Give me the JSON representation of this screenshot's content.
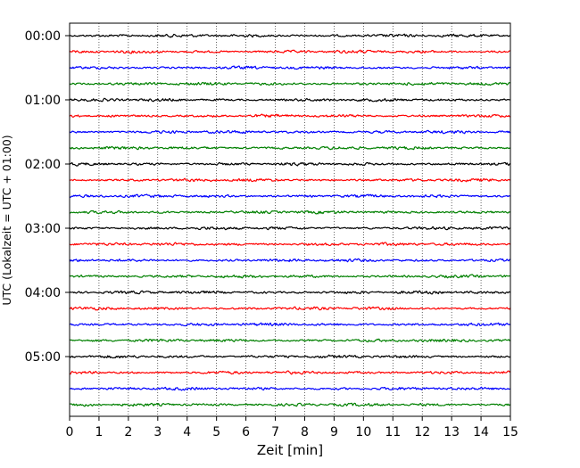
{
  "chart_data": {
    "type": "line",
    "title": "",
    "xlabel": "Zeit  [min]",
    "ylabel": "UTC (Lokalzeit = UTC + 01:00)",
    "xlim": [
      0,
      15
    ],
    "x_ticks": [
      0,
      1,
      2,
      3,
      4,
      5,
      6,
      7,
      8,
      9,
      10,
      11,
      12,
      13,
      14,
      15
    ],
    "x_tick_labels": [
      "0",
      "1",
      "2",
      "3",
      "4",
      "5",
      "6",
      "7",
      "8",
      "9",
      "10",
      "11",
      "12",
      "13",
      "14",
      "15"
    ],
    "y_tick_labels": [
      "00:00",
      "01:00",
      "02:00",
      "03:00",
      "04:00",
      "05:00"
    ],
    "y_tick_hours": [
      0,
      1,
      2,
      3,
      4,
      5
    ],
    "trace_interval_minutes": 15,
    "trace_count": 24,
    "trace_start_times": [
      "00:00",
      "00:15",
      "00:30",
      "00:45",
      "01:00",
      "01:15",
      "01:30",
      "01:45",
      "02:00",
      "02:15",
      "02:30",
      "02:45",
      "03:00",
      "03:15",
      "03:30",
      "03:45",
      "04:00",
      "04:15",
      "04:30",
      "04:45",
      "05:00",
      "05:15",
      "05:30",
      "05:45"
    ],
    "trace_colors": [
      "#000000",
      "#ff0000",
      "#0000ff",
      "#008000"
    ],
    "grid": {
      "x": true,
      "y": false,
      "style": "dotted"
    },
    "legend": "none"
  }
}
